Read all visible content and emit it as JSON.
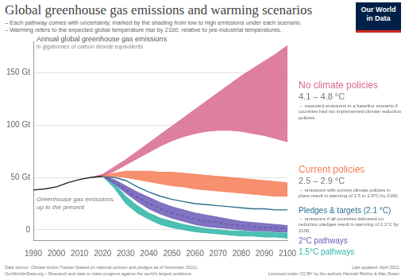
{
  "chart_data": {
    "type": "line",
    "title": "Global greenhouse gas emissions and warming scenarios",
    "subtitle": [
      "– Each pathway comes with uncertainty, marked by the shading from low to high emissions under each scenario.",
      "– Warming refers to the expected global temperature rise by 2100, relative to pre-industrial temperatures."
    ],
    "y_label": "Annual global greenhouse gas emissions",
    "y_sublabel": "in gigatonnes of carbon dioxide equivalents",
    "x": [
      1990,
      1995,
      2000,
      2005,
      2010,
      2015,
      2020,
      2025,
      2030,
      2035,
      2040,
      2045,
      2050,
      2055,
      2060,
      2065,
      2070,
      2075,
      2080,
      2085,
      2090,
      2095,
      2100
    ],
    "xlim": [
      1990,
      2100
    ],
    "xticks": [
      1990,
      2000,
      2010,
      2020,
      2030,
      2040,
      2050,
      2060,
      2070,
      2080,
      2090,
      2100
    ],
    "ylim": [
      -10,
      180
    ],
    "yticks": [
      0,
      {
        "value": 50,
        "label": "50 Gt"
      },
      {
        "value": 100,
        "label": "100 Gt"
      },
      {
        "value": 150,
        "label": "150 Gt"
      }
    ],
    "grid": true,
    "series": [
      {
        "name": "Greenhouse gas emissions up to the present",
        "color": "#222222",
        "values": [
          38,
          39,
          41,
          45,
          48,
          50,
          51,
          null,
          null,
          null,
          null,
          null,
          null,
          null,
          null,
          null,
          null,
          null,
          null,
          null,
          null,
          null,
          null
        ]
      },
      {
        "name": "No climate policies",
        "color": "#d9698f",
        "warming": "4.1 – 4.8 °C",
        "note": "→ expected emissions in a baseline scenario if countries had not implemented climate reduction policies.",
        "low": [
          null,
          null,
          null,
          null,
          null,
          50,
          51,
          56,
          62,
          68,
          74,
          80,
          85,
          89,
          92,
          94,
          95,
          95,
          94,
          92,
          90,
          87,
          84
        ],
        "high": [
          null,
          null,
          null,
          null,
          null,
          50,
          53,
          60,
          67,
          75,
          83,
          91,
          99,
          107,
          115,
          123,
          131,
          139,
          147,
          154,
          161,
          168,
          176
        ]
      },
      {
        "name": "Current policies",
        "color": "#f47c56",
        "warming": "2.5 – 2.9 °C",
        "note": "→ emissions with current climate policies in place result in warming of 2.5 to 2.9°C by 2100.",
        "low": [
          null,
          null,
          null,
          null,
          null,
          null,
          51,
          51,
          50,
          48,
          46,
          44,
          42,
          41,
          39,
          38,
          37,
          36,
          35,
          34,
          33,
          32,
          32
        ],
        "high": [
          null,
          null,
          null,
          null,
          null,
          null,
          52,
          54,
          56,
          56,
          56,
          55,
          55,
          54,
          53,
          52,
          51,
          50,
          49,
          48,
          47,
          46,
          45
        ]
      },
      {
        "name": "Pledges & targets (2.1 °C)",
        "color": "#2e6f8e",
        "note": "→ emissions if all countries delivered on reduction pledges result in warming of 2.1°C by 2100.",
        "values": [
          null,
          null,
          null,
          null,
          null,
          null,
          51,
          50,
          47,
          41,
          36,
          32,
          29,
          27,
          25,
          24,
          23,
          22,
          21,
          20,
          20,
          19,
          19
        ]
      },
      {
        "name": "2°C pathways",
        "color": "#6b5bb6",
        "line_style": "dashed",
        "values": [
          null,
          null,
          null,
          null,
          null,
          null,
          52,
          46,
          38,
          31,
          25,
          20,
          16,
          13,
          10,
          8,
          7,
          5,
          4,
          3,
          2,
          2,
          1
        ],
        "low": [
          null,
          null,
          null,
          null,
          null,
          null,
          51,
          44,
          35,
          27,
          20,
          15,
          11,
          8,
          5,
          3,
          2,
          1,
          0,
          -1,
          -1,
          -2,
          -2
        ],
        "high": [
          null,
          null,
          null,
          null,
          null,
          null,
          52,
          48,
          42,
          36,
          31,
          26,
          22,
          19,
          16,
          14,
          12,
          10,
          8,
          7,
          6,
          5,
          4
        ]
      },
      {
        "name": "1.5°C pathways",
        "color": "#2db5a5",
        "low": [
          null,
          null,
          null,
          null,
          null,
          null,
          51,
          40,
          25,
          16,
          10,
          5,
          2,
          0,
          -2,
          -3,
          -4,
          -5,
          -6,
          -6,
          -7,
          -7,
          -8
        ],
        "high": [
          null,
          null,
          null,
          null,
          null,
          null,
          52,
          44,
          32,
          23,
          16,
          11,
          8,
          5,
          3,
          1,
          0,
          -1,
          -1,
          -2,
          -2,
          -3,
          -3
        ]
      }
    ]
  },
  "logo": [
    "Our World",
    "in Data"
  ],
  "footer": {
    "left": [
      "Data source: Climate Action Tracker (based on national policies and pledges as of November 2021).",
      "OurWorldinData.org – Research and data to make progress against the world's largest problems."
    ],
    "right": [
      "Last updated: April 2022.",
      "Licensed under CC-BY by the authors Hannah Ritchie & Max Roser."
    ]
  }
}
